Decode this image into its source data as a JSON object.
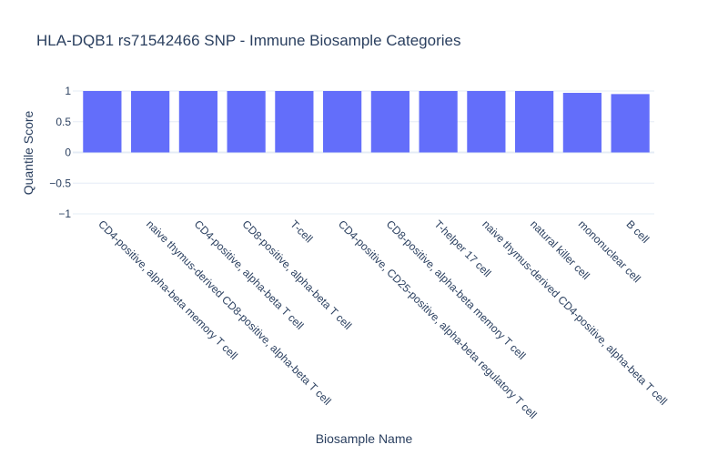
{
  "chart_data": {
    "type": "bar",
    "title": "HLA-DQB1 rs71542466 SNP - Immune Biosample Categories",
    "xlabel": "Biosample Name",
    "ylabel": "Quantile Score",
    "ylim": [
      -1,
      1
    ],
    "yticks": [
      1,
      0.5,
      0,
      -0.5,
      -1
    ],
    "ytick_labels": [
      "1",
      "0.5",
      "0",
      "−0.5",
      "−1"
    ],
    "categories": [
      "CD4-positive, alpha-beta memory T cell",
      "naive thymus-derived CD8-positive, alpha-beta T cell",
      "CD4-positive, alpha-beta T cell",
      "CD8-positive, alpha-beta T cell",
      "T-cell",
      "CD4-positive, CD25-positive, alpha-beta regulatory T cell",
      "CD8-positive, alpha-beta memory T cell",
      "T-helper 17 cell",
      "naive thymus-derived CD4-positive, alpha-beta T cell",
      "natural killer cell",
      "mononuclear cell",
      "B cell"
    ],
    "values": [
      1,
      1,
      1,
      1,
      1,
      1,
      1,
      1,
      1,
      1,
      0.97,
      0.95
    ],
    "bar_color": "#636efa",
    "grid": true
  }
}
